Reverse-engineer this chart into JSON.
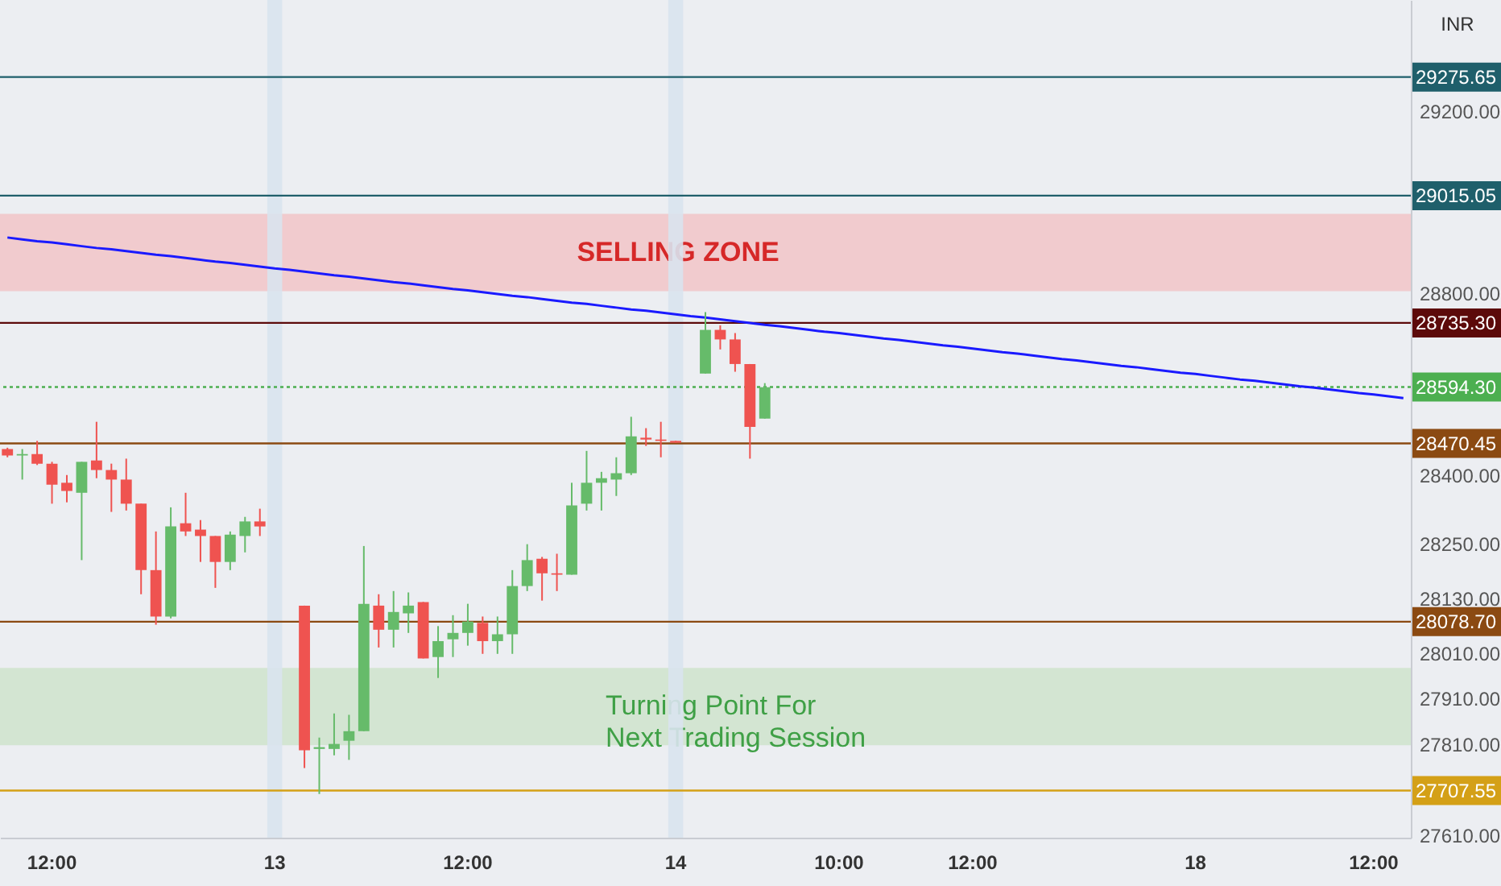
{
  "chart_data": {
    "type": "candlestick",
    "categories": [
      null,
      null,
      null,
      "12:00",
      null,
      null,
      null,
      null,
      null,
      null,
      null,
      null,
      null,
      null,
      null,
      null,
      null,
      null,
      "13",
      null,
      null,
      null,
      null,
      null,
      null,
      null,
      null,
      null,
      null,
      null,
      null,
      "12:00",
      null,
      null,
      null,
      null,
      null,
      null,
      null,
      null,
      null,
      null,
      null,
      null,
      null,
      "14",
      null,
      null,
      null,
      null,
      null,
      null,
      null,
      null,
      null,
      null,
      "10:00",
      null,
      null,
      null,
      null,
      null,
      null,
      null,
      null,
      "12:00",
      null,
      null,
      null,
      null,
      null,
      null,
      null,
      null,
      null,
      null,
      null,
      null,
      null,
      null,
      "18",
      null,
      null,
      null,
      null,
      null,
      null,
      null,
      null,
      null,
      null,
      null,
      "12:00",
      null,
      null
    ],
    "ohlc": [
      [
        28458,
        28461,
        28440,
        28444
      ],
      [
        28444,
        28458,
        28391,
        28447
      ],
      [
        28447,
        28476,
        28423,
        28426
      ],
      [
        28426,
        28430,
        28338,
        28380
      ],
      [
        28384,
        28401,
        28341,
        28366
      ],
      [
        28362,
        28430,
        28214,
        28430
      ],
      [
        28433,
        28518,
        28394,
        28412
      ],
      [
        28412,
        28426,
        28320,
        28391
      ],
      [
        28391,
        28437,
        28323,
        28338
      ],
      [
        28338,
        28338,
        28139,
        28192
      ],
      [
        28192,
        28277,
        28072,
        28090
      ],
      [
        28090,
        28330,
        28086,
        28288
      ],
      [
        28295,
        28362,
        28267,
        28277
      ],
      [
        28281,
        28302,
        28210,
        28267
      ],
      [
        28267,
        28267,
        28153,
        28210
      ],
      [
        28210,
        28277,
        28192,
        28270
      ],
      [
        28267,
        28309,
        28231,
        28299
      ],
      [
        28299,
        28327,
        28267,
        28288
      ],
      null,
      null,
      [
        28114,
        28114,
        27757,
        27796
      ],
      [
        27799,
        27824,
        27700,
        27803
      ],
      [
        27799,
        27877,
        27785,
        27810
      ],
      [
        27817,
        27874,
        27775,
        27838
      ],
      [
        27838,
        28245,
        27838,
        28118
      ],
      [
        28114,
        28139,
        28022,
        28061
      ],
      [
        28061,
        28146,
        28022,
        28100
      ],
      [
        28097,
        28143,
        28054,
        28114
      ],
      [
        28122,
        28122,
        27998,
        27998
      ],
      [
        28001,
        28069,
        27955,
        28036
      ],
      [
        28040,
        28093,
        28001,
        28054
      ],
      [
        28054,
        28118,
        28026,
        28079
      ],
      [
        28076,
        28090,
        28008,
        28036
      ],
      [
        28036,
        28090,
        28008,
        28051
      ],
      [
        28051,
        28192,
        28008,
        28157
      ],
      [
        28157,
        28249,
        28146,
        28214
      ],
      [
        28217,
        28221,
        28125,
        28185
      ],
      [
        28185,
        28228,
        28146,
        28182
      ],
      [
        28182,
        28384,
        28182,
        28334
      ],
      [
        28338,
        28454,
        28323,
        28384
      ],
      [
        28384,
        28408,
        28323,
        28394
      ],
      [
        28391,
        28440,
        28355,
        28405
      ],
      [
        28405,
        28529,
        28401,
        28486
      ],
      [
        28483,
        28504,
        28465,
        28479
      ],
      [
        28479,
        28518,
        28440,
        28476
      ],
      [
        28476,
        28476,
        28472,
        28472
      ],
      null,
      [
        28624,
        28759,
        28624,
        28720
      ],
      [
        28720,
        28730,
        28677,
        28699
      ],
      [
        28699,
        28713,
        28628,
        28645
      ],
      [
        28645,
        28645,
        28437,
        28507
      ],
      [
        28525,
        28603,
        28525,
        28594
      ],
      null,
      null,
      null,
      null,
      null,
      null,
      null,
      null,
      null,
      null,
      null,
      null,
      null,
      null,
      null,
      null,
      null,
      null,
      null,
      null,
      null,
      null,
      null,
      null,
      null,
      null,
      null,
      null,
      null,
      null,
      null,
      null,
      null,
      null,
      null,
      null,
      null,
      null,
      null,
      null,
      null,
      null,
      null
    ],
    "colors": [
      "#ef5350",
      "#66bb6a",
      "#ef5350",
      "#ef5350",
      "#ef5350",
      "#66bb6a",
      "#ef5350",
      "#ef5350",
      "#ef5350",
      "#ef5350",
      "#ef5350",
      "#66bb6a",
      "#ef5350",
      "#ef5350",
      "#ef5350",
      "#66bb6a",
      "#66bb6a",
      "#ef5350",
      null,
      null,
      "#ef5350",
      "#66bb6a",
      "#66bb6a",
      "#66bb6a",
      "#66bb6a",
      "#ef5350",
      "#66bb6a",
      "#66bb6a",
      "#ef5350",
      "#66bb6a",
      "#66bb6a",
      "#66bb6a",
      "#ef5350",
      "#66bb6a",
      "#66bb6a",
      "#66bb6a",
      "#ef5350",
      "#ef5350",
      "#66bb6a",
      "#66bb6a",
      "#66bb6a",
      "#66bb6a",
      "#66bb6a",
      "#ef5350",
      "#ef5350",
      "#ef5350",
      null,
      "#66bb6a",
      "#ef5350",
      "#ef5350",
      "#ef5350",
      "#66bb6a",
      null,
      null,
      null,
      null,
      null,
      null,
      null,
      null,
      null,
      null,
      null,
      null,
      null,
      null,
      null,
      null,
      null,
      null,
      null,
      null,
      null,
      null,
      null,
      null,
      null,
      null,
      null,
      null,
      null,
      null,
      null,
      null,
      null,
      null,
      null,
      null,
      null,
      null,
      null,
      null,
      null,
      null,
      null
    ],
    "series": [
      {
        "type": "line",
        "color": "#1a1aff",
        "values": [
          28923,
          28919,
          28915,
          28912,
          28908,
          28904,
          28900,
          28897,
          28893,
          28889,
          28885,
          28882,
          28878,
          28874,
          28870,
          28867,
          28863,
          28859,
          28855,
          28852,
          28848,
          28844,
          28840,
          28837,
          28833,
          28829,
          28825,
          28822,
          28818,
          28814,
          28810,
          28807,
          28803,
          28799,
          28795,
          28792,
          28788,
          28784,
          28780,
          28777,
          28773,
          28769,
          28765,
          28762,
          28758,
          28754,
          28750,
          28747,
          28743,
          28739,
          28735,
          28731,
          28728,
          28724,
          28720,
          28716,
          28713,
          28709,
          28705,
          28701,
          28698,
          28694,
          28690,
          28686,
          28683,
          28679,
          28675,
          28671,
          28668,
          28664,
          28660,
          28656,
          28653,
          28649,
          28645,
          28641,
          28638,
          28634,
          28630,
          28626,
          28623,
          28619,
          28615,
          28611,
          28608,
          28604,
          28600,
          28596,
          28593,
          28589,
          28585,
          28581,
          28578,
          28574,
          28570
        ]
      }
    ],
    "ylim": [
      27604,
      29445
    ],
    "yticks": [
      {
        "value": 29200,
        "label": "29200.00"
      },
      {
        "value": 28800,
        "label": "28800.00"
      },
      {
        "value": 28400,
        "label": "28400.00"
      },
      {
        "value": 28250,
        "label": "28250.00"
      },
      {
        "value": 28130,
        "label": "28130.00"
      },
      {
        "value": 28010,
        "label": "28010.00"
      },
      {
        "value": 27910,
        "label": "27910.00"
      },
      {
        "value": 27810,
        "label": "27810.00"
      },
      {
        "value": 27610,
        "label": "27610.00"
      }
    ],
    "ref_lines": [
      {
        "axis": "y",
        "value": 29275.65,
        "label": "29275.65",
        "color": "#1f5f6b"
      },
      {
        "axis": "y",
        "value": 29015.05,
        "label": "29015.05",
        "color": "#1f5f6b"
      },
      {
        "axis": "y",
        "value": 28735.3,
        "label": "28735.30",
        "color": "#5c0a0a"
      },
      {
        "axis": "y",
        "value": 28594.3,
        "label": "28594.30",
        "color": "#4caf50",
        "line_style": "dotted"
      },
      {
        "axis": "y",
        "value": 28470.45,
        "label": "28470.45",
        "color": "#8b4a12"
      },
      {
        "axis": "y",
        "value": 28078.7,
        "label": "28078.70",
        "color": "#8b4a12"
      },
      {
        "axis": "y",
        "value": 27707.55,
        "label": "27707.55",
        "color": "#d4a017"
      }
    ],
    "bands": [
      {
        "axis": "y",
        "from": 28805,
        "to": 28975,
        "label": "SELLING ZONE",
        "color": "#f2c4c8"
      },
      {
        "axis": "y",
        "from": 27807,
        "to": 27977,
        "label": "Turning Point For\nNext Trading Session",
        "color": "#cfe3cc"
      },
      {
        "axis": "x",
        "from": "13",
        "to": "13",
        "color": "#d9e3ee"
      },
      {
        "axis": "x",
        "from": "14",
        "to": "14",
        "color": "#d9e3ee"
      }
    ],
    "annotations": [
      "INR"
    ]
  }
}
